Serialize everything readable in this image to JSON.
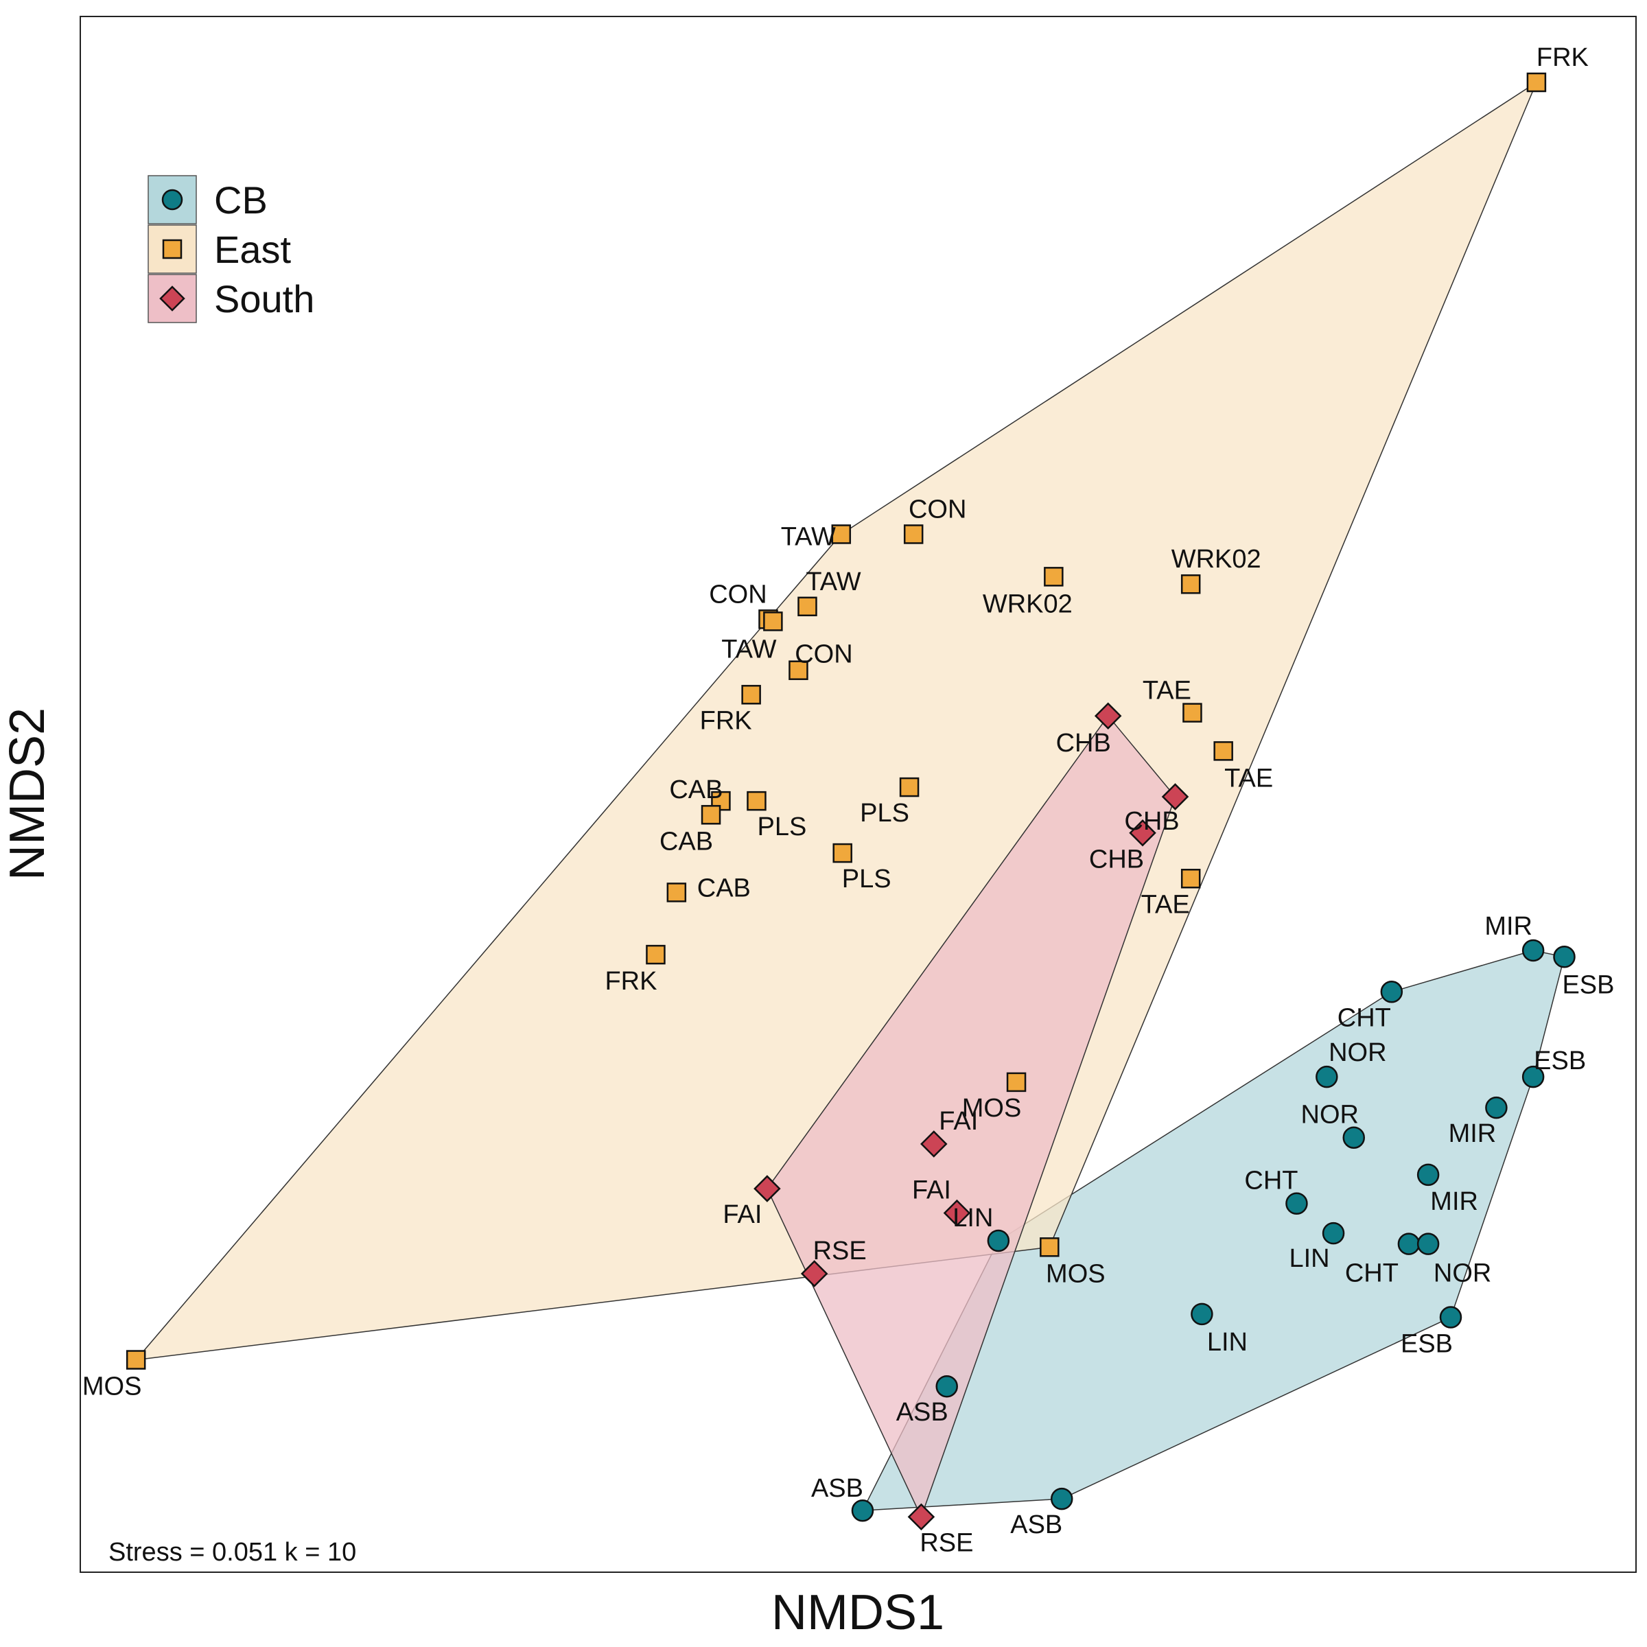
{
  "chart_data": {
    "type": "scatter",
    "xlabel": "NMDS1",
    "ylabel": "NMDS2",
    "annotation": "Stress = 0.051 k = 10",
    "xlim": [
      -1.0,
      1.0
    ],
    "ylim": [
      -1.0,
      1.0
    ],
    "grid": false,
    "legend_position": "top-left",
    "groups": [
      {
        "name": "CB",
        "marker": "circle",
        "color": "#0e7c86",
        "hull_color": "#b4d7dc",
        "hull": [
          "ASB",
          "ASB",
          "ESB",
          "ESB",
          "MIR",
          "CHT",
          "NOR",
          "LIN"
        ],
        "points": [
          {
            "label": "MIR",
            "x": 0.8678,
            "y": -0.2007
          },
          {
            "label": "ESB",
            "x": 0.9078,
            "y": -0.2089
          },
          {
            "label": "CHT",
            "x": 0.6858,
            "y": -0.2539
          },
          {
            "label": "ESB",
            "x": 0.8678,
            "y": -0.3632
          },
          {
            "label": "NOR",
            "x": 0.6024,
            "y": -0.3632
          },
          {
            "label": "MIR",
            "x": 0.8204,
            "y": -0.4029
          },
          {
            "label": "NOR",
            "x": 0.6372,
            "y": -0.4413
          },
          {
            "label": "MIR",
            "x": 0.7328,
            "y": -0.4891
          },
          {
            "label": "CHT",
            "x": 0.5637,
            "y": -0.526
          },
          {
            "label": "LIN",
            "x": 0.611,
            "y": -0.5643
          },
          {
            "label": "CHT",
            "x": 0.7079,
            "y": -0.578
          },
          {
            "label": "NOR",
            "x": 0.7328,
            "y": -0.578
          },
          {
            "label": "LIN",
            "x": 0.1803,
            "y": -0.5739
          },
          {
            "label": "ESB",
            "x": 0.7618,
            "y": -0.6723
          },
          {
            "label": "LIN",
            "x": 0.4419,
            "y": -0.6682
          },
          {
            "label": "ASB",
            "x": 0.114,
            "y": -0.7611
          },
          {
            "label": "ASB",
            "x": 0.0057,
            "y": -0.9208
          },
          {
            "label": "ASB",
            "x": 0.2618,
            "y": -0.9057
          }
        ]
      },
      {
        "name": "East",
        "marker": "square",
        "color": "#f0a83c",
        "hull_color": "#f8e5c8",
        "hull": [
          "FRK",
          "MOS",
          "MOS",
          "TAW"
        ],
        "points": [
          {
            "label": "FRK",
            "x": 0.872,
            "y": 0.9153
          },
          {
            "label": "TAW",
            "x": -0.0218,
            "y": 0.3344
          },
          {
            "label": "CON",
            "x": 0.0712,
            "y": 0.3344
          },
          {
            "label": "WRK02",
            "x": 0.2513,
            "y": 0.2798
          },
          {
            "label": "WRK02",
            "x": 0.4276,
            "y": 0.2702
          },
          {
            "label": "TAW",
            "x": -0.0653,
            "y": 0.2415
          },
          {
            "label": "CON",
            "x": -0.1156,
            "y": 0.2251
          },
          {
            "label": "TAW",
            "x": -0.1095,
            "y": 0.2224
          },
          {
            "label": "CON",
            "x": -0.0768,
            "y": 0.1595
          },
          {
            "label": "FRK",
            "x": -0.1375,
            "y": 0.1281
          },
          {
            "label": "TAE",
            "x": 0.4296,
            "y": 0.1049
          },
          {
            "label": "TAE",
            "x": 0.4695,
            "y": 0.0557
          },
          {
            "label": "PLS",
            "x": 0.0658,
            "y": 0.0092
          },
          {
            "label": "CAB",
            "x": -0.1765,
            "y": -0.0085
          },
          {
            "label": "PLS",
            "x": -0.1306,
            "y": -0.0085
          },
          {
            "label": "CAB",
            "x": -0.1892,
            "y": -0.0263
          },
          {
            "label": "PLS",
            "x": -0.0201,
            "y": -0.0755
          },
          {
            "label": "TAE",
            "x": 0.4276,
            "y": -0.1083
          },
          {
            "label": "CAB",
            "x": -0.2335,
            "y": -0.1261
          },
          {
            "label": "FRK",
            "x": -0.2603,
            "y": -0.2061
          },
          {
            "label": "MOS",
            "x": 0.2034,
            "y": -0.37
          },
          {
            "label": "MOS",
            "x": 0.246,
            "y": -0.5821
          },
          {
            "label": "MOS",
            "x": -0.9284,
            "y": -0.727
          }
        ]
      },
      {
        "name": "South",
        "marker": "diamond",
        "color": "#cc4455",
        "hull_color": "#eebfc7",
        "hull": [
          "CHB",
          "CHB",
          "RSE",
          "RSE",
          "FAI"
        ],
        "points": [
          {
            "label": "CHB",
            "x": 0.3213,
            "y": 0.1008
          },
          {
            "label": "CHB",
            "x": 0.4076,
            "y": -0.0031
          },
          {
            "label": "CHB",
            "x": 0.3657,
            "y": -0.0496
          },
          {
            "label": "FAI",
            "x": 0.0973,
            "y": -0.4495
          },
          {
            "label": "FAI",
            "x": -0.117,
            "y": -0.5069
          },
          {
            "label": "FAI",
            "x": 0.127,
            "y": -0.5383
          },
          {
            "label": "RSE",
            "x": -0.0563,
            "y": -0.6162
          },
          {
            "label": "RSE",
            "x": 0.0811,
            "y": -0.9289
          }
        ]
      }
    ]
  }
}
